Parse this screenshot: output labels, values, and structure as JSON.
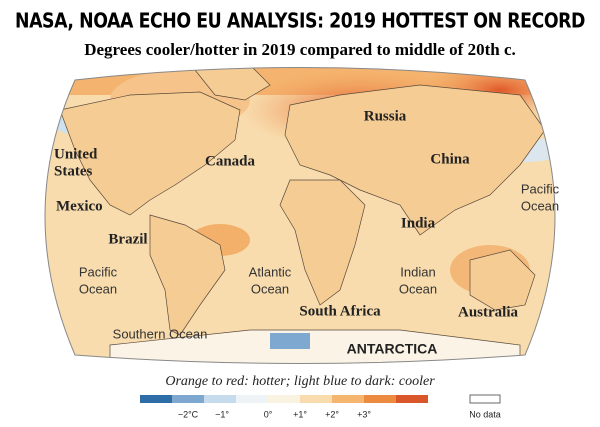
{
  "header": {
    "title": "NASA, NOAA ECHO EU ANALYSIS: 2019 HOTTEST ON RECORD",
    "subtitle": "Degrees cooler/hotter in 2019 compared to middle of 20th c."
  },
  "map": {
    "labels": [
      {
        "lines": [
          "Russia"
        ]
      },
      {
        "lines": [
          "United",
          "States"
        ]
      },
      {
        "lines": [
          "Canada"
        ]
      },
      {
        "lines": [
          "China"
        ]
      },
      {
        "lines": [
          "Mexico"
        ]
      },
      {
        "lines": [
          "Pacific",
          "Ocean"
        ]
      },
      {
        "lines": [
          "India"
        ]
      },
      {
        "lines": [
          "Brazil"
        ]
      },
      {
        "lines": [
          "Pacific",
          "Ocean"
        ]
      },
      {
        "lines": [
          "Atlantic",
          "Ocean"
        ]
      },
      {
        "lines": [
          "Indian",
          "Ocean"
        ]
      },
      {
        "lines": [
          "South Africa"
        ]
      },
      {
        "lines": [
          "Australia"
        ]
      },
      {
        "lines": [
          "Southern Ocean"
        ]
      },
      {
        "lines": [
          "ANTARCTICA"
        ]
      }
    ]
  },
  "caption": "Orange to red: hotter; light blue to dark: cooler",
  "legend": {
    "ticks": [
      "−2°C",
      "−1°",
      "0°",
      "+1°",
      "+2°",
      "+3°"
    ],
    "no_data": "No data"
  }
}
